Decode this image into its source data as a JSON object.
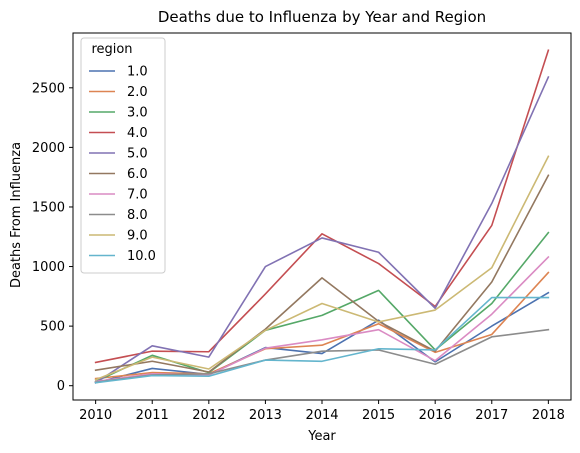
{
  "chart_data": {
    "type": "line",
    "title": "Deaths due to Influenza by Year and Region",
    "xlabel": "Year",
    "ylabel": "Deaths From Influenza",
    "x": [
      2010,
      2011,
      2012,
      2013,
      2014,
      2015,
      2016,
      2017,
      2018
    ],
    "x_tick_labels": [
      "2010",
      "2011",
      "2012",
      "2013",
      "2014",
      "2015",
      "2016",
      "2017",
      "2018"
    ],
    "y_ticks": [
      0,
      500,
      1000,
      1500,
      2000,
      2500
    ],
    "y_tick_labels": [
      "0",
      "500",
      "1000",
      "1500",
      "2000",
      "2500"
    ],
    "xlim": [
      2009.6,
      2018.4
    ],
    "ylim": [
      -120,
      2960
    ],
    "grid": false,
    "legend": {
      "title": "region",
      "placement": "upper-left"
    },
    "series": [
      {
        "name": "1.0",
        "color": "#4c72b0",
        "values": [
          25,
          145,
          95,
          320,
          270,
          550,
          200,
          500,
          780
        ]
      },
      {
        "name": "2.0",
        "color": "#dd8452",
        "values": [
          60,
          110,
          100,
          310,
          340,
          520,
          280,
          430,
          950
        ]
      },
      {
        "name": "3.0",
        "color": "#55a868",
        "values": [
          35,
          255,
          110,
          465,
          590,
          800,
          300,
          690,
          1285
        ]
      },
      {
        "name": "4.0",
        "color": "#c44e52",
        "values": [
          195,
          290,
          285,
          770,
          1275,
          1025,
          665,
          1345,
          2815
        ]
      },
      {
        "name": "5.0",
        "color": "#8172b3",
        "values": [
          25,
          335,
          240,
          1000,
          1240,
          1120,
          650,
          1530,
          2590
        ]
      },
      {
        "name": "6.0",
        "color": "#937860",
        "values": [
          130,
          205,
          115,
          475,
          905,
          540,
          290,
          870,
          1765
        ]
      },
      {
        "name": "7.0",
        "color": "#da8bc3",
        "values": [
          35,
          100,
          90,
          315,
          385,
          470,
          210,
          600,
          1080
        ]
      },
      {
        "name": "8.0",
        "color": "#8c8c8c",
        "values": [
          30,
          90,
          100,
          215,
          290,
          300,
          180,
          410,
          470
        ]
      },
      {
        "name": "9.0",
        "color": "#ccb974",
        "values": [
          50,
          240,
          140,
          465,
          690,
          535,
          635,
          990,
          1925
        ]
      },
      {
        "name": "10.0",
        "color": "#64b5cd",
        "values": [
          25,
          85,
          80,
          215,
          205,
          310,
          300,
          740,
          740
        ]
      }
    ]
  }
}
